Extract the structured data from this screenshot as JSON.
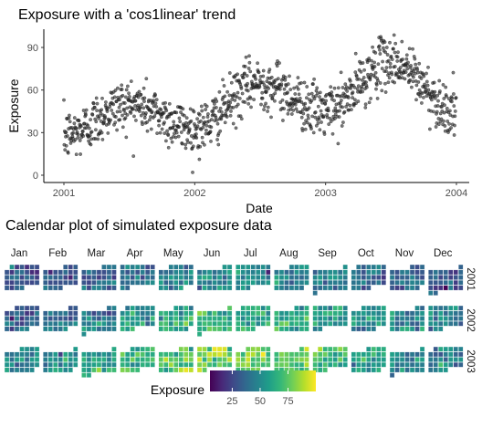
{
  "chart_data": [
    {
      "type": "scatter",
      "title": "Exposure with a 'cos1linear' trend",
      "xlabel": "Date",
      "ylabel": "Exposure",
      "x_ticks": [
        "2001",
        "2002",
        "2003",
        "2004"
      ],
      "y_ticks": [
        0,
        30,
        60,
        90
      ],
      "xlim": [
        "2001-01-01",
        "2004-01-01"
      ],
      "ylim": [
        0,
        100
      ],
      "grid": false,
      "point_color": "#333333",
      "trend": "cos1linear",
      "trend_keypoints": [
        {
          "date": "2001-01-01",
          "value": 28
        },
        {
          "date": "2001-07-01",
          "value": 50
        },
        {
          "date": "2002-01-01",
          "value": 33
        },
        {
          "date": "2002-07-01",
          "value": 65
        },
        {
          "date": "2003-01-01",
          "value": 45
        },
        {
          "date": "2003-07-01",
          "value": 80
        },
        {
          "date": "2004-01-01",
          "value": 45
        }
      ],
      "noise_sd": 9
    },
    {
      "type": "heatmap",
      "title": "Calendar plot of simulated exposure data",
      "months": [
        "Jan",
        "Feb",
        "Mar",
        "Apr",
        "May",
        "Jun",
        "Jul",
        "Aug",
        "Sep",
        "Oct",
        "Nov",
        "Dec"
      ],
      "years": [
        "2001",
        "2002",
        "2003"
      ],
      "legend": {
        "title": "Exposure",
        "ticks": [
          25,
          50,
          75
        ],
        "range": [
          5,
          100
        ],
        "position": "bottom"
      },
      "palette": [
        "#440154",
        "#482878",
        "#3e4a89",
        "#31688e",
        "#26828e",
        "#1f9e89",
        "#35b779",
        "#6ece58",
        "#b5de2b",
        "#fde725"
      ]
    }
  ]
}
